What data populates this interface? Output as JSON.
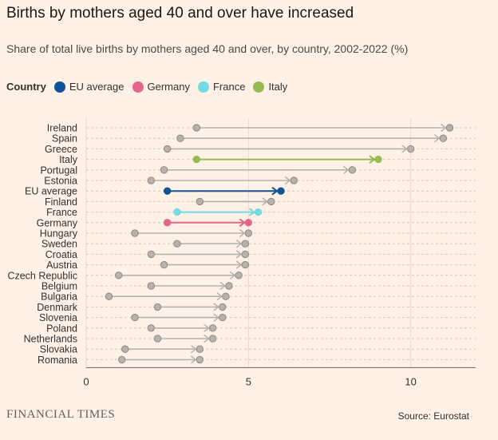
{
  "title": "Births by mothers aged 40 and over have increased",
  "subtitle": "Share of total live births by mothers aged 40 and over, by country, 2002-2022 (%)",
  "legend": {
    "title": "Country",
    "items": [
      {
        "label": "EU average",
        "color": "#0f5499"
      },
      {
        "label": "Germany",
        "color": "#e3668a"
      },
      {
        "label": "France",
        "color": "#72dbe3"
      },
      {
        "label": "Italy",
        "color": "#96bb54"
      }
    ]
  },
  "footer": {
    "logo": "FINANCIAL TIMES",
    "source": "Source: Eurostat"
  },
  "chart_data": {
    "type": "dumbbell",
    "title": "Births by mothers aged 40 and over have increased",
    "subtitle": "Share of total live births by mothers aged 40 and over, by country, 2002-2022 (%)",
    "xlim": [
      0,
      12
    ],
    "xticks": [
      0,
      5,
      10
    ],
    "default_color": "#b8b2ad",
    "rows": [
      {
        "country": "Ireland",
        "start": 3.4,
        "end": 11.2
      },
      {
        "country": "Spain",
        "start": 2.9,
        "end": 11.0
      },
      {
        "country": "Greece",
        "start": 2.5,
        "end": 10.0
      },
      {
        "country": "Italy",
        "start": 3.4,
        "end": 9.0,
        "color": "#96bb54"
      },
      {
        "country": "Portugal",
        "start": 2.4,
        "end": 8.2
      },
      {
        "country": "Estonia",
        "start": 2.0,
        "end": 6.4
      },
      {
        "country": "EU average",
        "start": 2.5,
        "end": 6.0,
        "color": "#0f5499"
      },
      {
        "country": "Finland",
        "start": 3.5,
        "end": 5.7
      },
      {
        "country": "France",
        "start": 2.8,
        "end": 5.3,
        "color": "#72dbe3"
      },
      {
        "country": "Germany",
        "start": 2.5,
        "end": 5.0,
        "color": "#e3668a"
      },
      {
        "country": "Hungary",
        "start": 1.5,
        "end": 5.0
      },
      {
        "country": "Sweden",
        "start": 2.8,
        "end": 4.9
      },
      {
        "country": "Croatia",
        "start": 2.0,
        "end": 4.9
      },
      {
        "country": "Austria",
        "start": 2.4,
        "end": 4.9
      },
      {
        "country": "Czech Republic",
        "start": 1.0,
        "end": 4.7
      },
      {
        "country": "Belgium",
        "start": 2.0,
        "end": 4.4
      },
      {
        "country": "Bulgaria",
        "start": 0.7,
        "end": 4.3
      },
      {
        "country": "Denmark",
        "start": 2.2,
        "end": 4.2
      },
      {
        "country": "Slovenia",
        "start": 1.5,
        "end": 4.2
      },
      {
        "country": "Poland",
        "start": 2.0,
        "end": 3.9
      },
      {
        "country": "Netherlands",
        "start": 2.2,
        "end": 3.9
      },
      {
        "country": "Slovakia",
        "start": 1.2,
        "end": 3.5
      },
      {
        "country": "Romania",
        "start": 1.1,
        "end": 3.5
      }
    ]
  }
}
